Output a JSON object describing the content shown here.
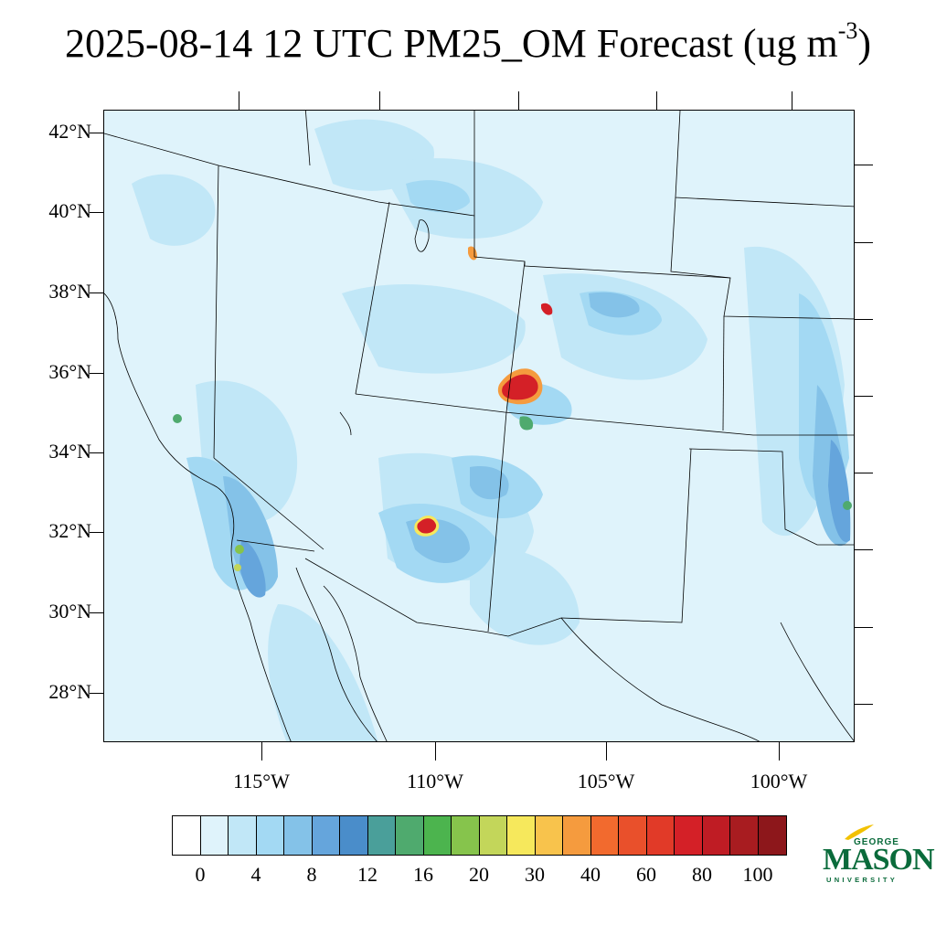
{
  "title": {
    "main": "2025-08-14 12 UTC PM25_OM Forecast (ug m",
    "exponent": "-3",
    "close": ")"
  },
  "lat_labels": [
    "42°N",
    "40°N",
    "38°N",
    "36°N",
    "34°N",
    "32°N",
    "30°N",
    "28°N"
  ],
  "lon_labels": [
    "115°W",
    "110°W",
    "105°W",
    "100°W"
  ],
  "colorbar": {
    "colors": [
      "#ffffff",
      "#dff3fb",
      "#c1e7f7",
      "#a3d9f3",
      "#84c2e8",
      "#65a5dc",
      "#4a8dca",
      "#4a9f9a",
      "#4faa6e",
      "#4cb44e",
      "#86c44c",
      "#c3d65a",
      "#f6e85c",
      "#f8c34c",
      "#f59b3e",
      "#f26a2e",
      "#e9502b",
      "#e13a28",
      "#d42027",
      "#bf1c24",
      "#a81c20",
      "#8d171b"
    ],
    "labels": [
      "0",
      "4",
      "8",
      "12",
      "16",
      "20",
      "30",
      "40",
      "60",
      "80",
      "100"
    ]
  },
  "logo": {
    "line1": "GEORGE",
    "line2": "MASON",
    "line3": "UNIVERSITY",
    "color": "#0a6b3b",
    "accent": "#f2c100"
  },
  "map_colors": {
    "background": "#dff3fb",
    "level1": "#c1e7f7",
    "level2": "#a3d9f3",
    "level3": "#84c2e8",
    "level4": "#65a5dc",
    "level5": "#4a8dca",
    "green": "#4faa6e",
    "yellow": "#f6e85c",
    "orange": "#f59b3e",
    "red": "#d42027",
    "darkred": "#a81c20"
  }
}
